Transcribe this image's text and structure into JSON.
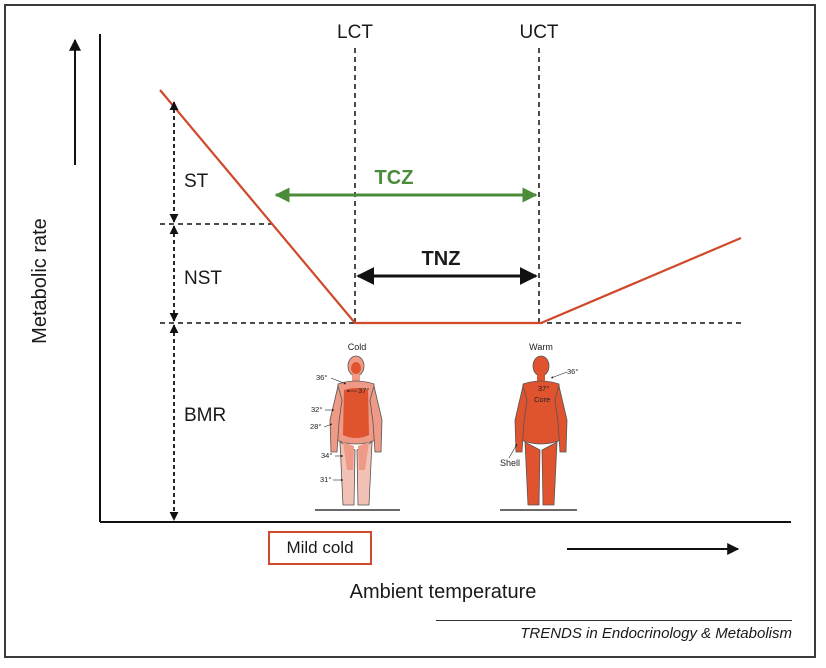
{
  "axes": {
    "y_label": "Metabolic rate",
    "x_label": "Ambient temperature"
  },
  "thresholds": {
    "lct": "LCT",
    "uct": "UCT"
  },
  "zones": {
    "tcz": "TCZ",
    "tnz": "TNZ"
  },
  "components": {
    "st": "ST",
    "nst": "NST",
    "bmr": "BMR"
  },
  "figures": {
    "cold": {
      "title": "Cold",
      "temps": [
        "36°",
        "37°",
        "32°",
        "28°",
        "34°",
        "31°"
      ]
    },
    "warm": {
      "title": "Warm",
      "temps": [
        "36°",
        "37°"
      ],
      "core": "Core",
      "shell": "Shell"
    }
  },
  "mild_cold": "Mild cold",
  "credit": "TRENDS in Endocrinology & Metabolism",
  "colors": {
    "curve": "#d0492a",
    "tcz": "#4a8c3a",
    "tnz": "#111111",
    "body_core": "#e0532f",
    "body_shell": "#ee9a86"
  }
}
